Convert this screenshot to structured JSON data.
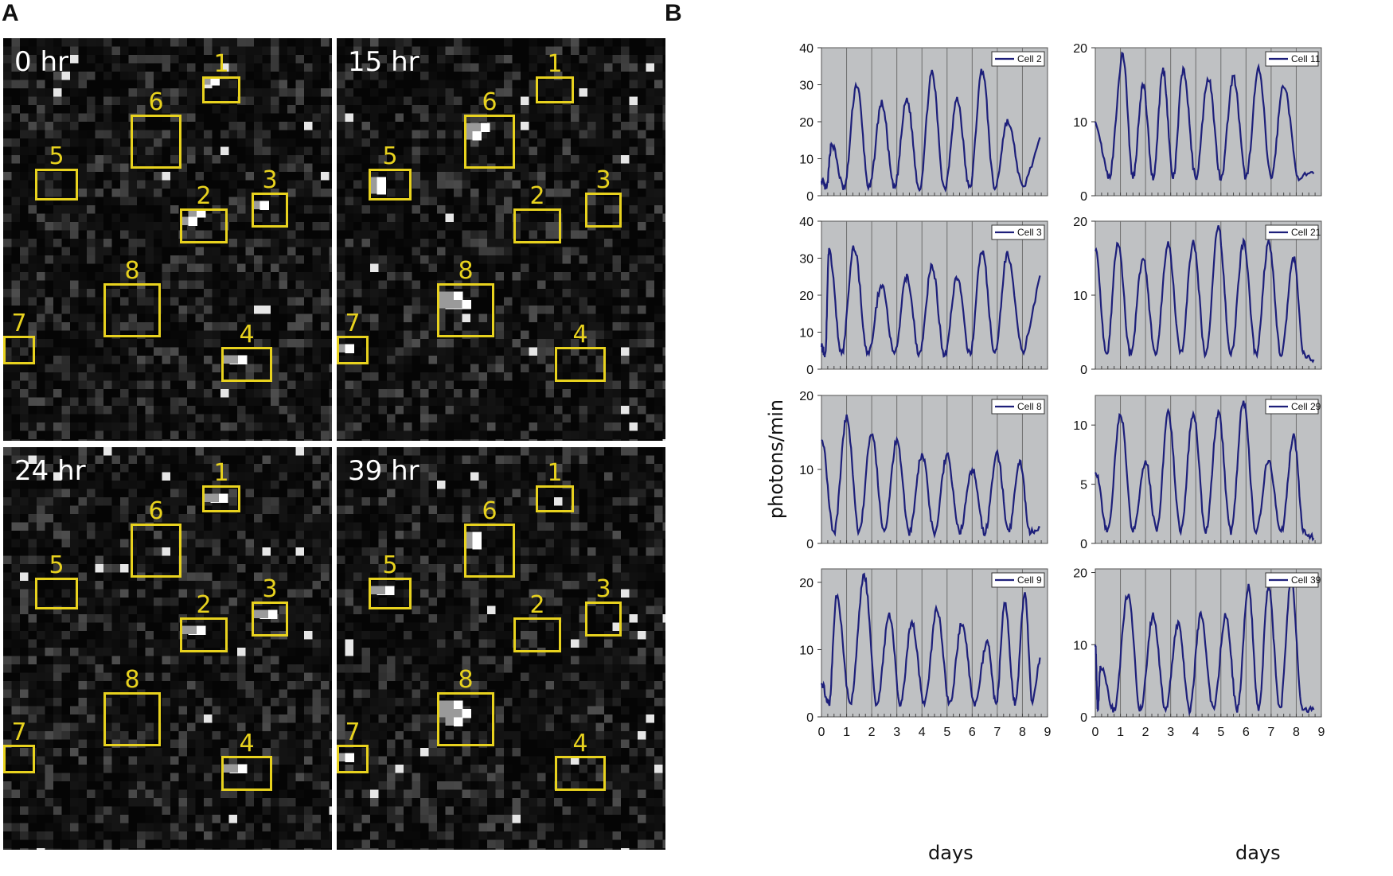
{
  "panel_a": {
    "letter": "A",
    "tiles": [
      {
        "time": "0 hr",
        "boxes": [
          {
            "label": "1",
            "bright": [
              [
                1,
                0
              ]
            ]
          },
          {
            "label": "6",
            "bright": []
          },
          {
            "label": "5",
            "bright": []
          },
          {
            "label": "2",
            "bright": [
              [
                1,
                1
              ],
              [
                2,
                0
              ]
            ]
          },
          {
            "label": "3",
            "bright": [
              [
                1,
                1
              ]
            ]
          },
          {
            "label": "8",
            "bright": []
          },
          {
            "label": "7",
            "bright": []
          },
          {
            "label": "4",
            "bright": [
              [
                1,
                1
              ],
              [
                2,
                1
              ]
            ]
          }
        ]
      },
      {
        "time": "15 hr",
        "boxes": [
          {
            "label": "1",
            "bright": []
          },
          {
            "label": "6",
            "bright": [
              [
                1,
                1
              ],
              [
                2,
                1
              ],
              [
                1,
                2
              ]
            ]
          },
          {
            "label": "5",
            "bright": [
              [
                1,
                1
              ],
              [
                1,
                2
              ]
            ]
          },
          {
            "label": "2",
            "bright": []
          },
          {
            "label": "3",
            "bright": []
          },
          {
            "label": "8",
            "bright": [
              [
                1,
                1
              ],
              [
                2,
                1
              ],
              [
                1,
                2
              ],
              [
                2,
                2
              ],
              [
                3,
                2
              ]
            ]
          },
          {
            "label": "7",
            "bright": [
              [
                1,
                1
              ]
            ]
          },
          {
            "label": "4",
            "bright": []
          }
        ]
      },
      {
        "time": "24 hr",
        "boxes": [
          {
            "label": "1",
            "bright": [
              [
                1,
                1
              ],
              [
                2,
                1
              ]
            ]
          },
          {
            "label": "6",
            "bright": []
          },
          {
            "label": "5",
            "bright": []
          },
          {
            "label": "2",
            "bright": [
              [
                1,
                1
              ],
              [
                2,
                1
              ]
            ]
          },
          {
            "label": "3",
            "bright": [
              [
                1,
                1
              ],
              [
                2,
                1
              ]
            ]
          },
          {
            "label": "8",
            "bright": []
          },
          {
            "label": "7",
            "bright": []
          },
          {
            "label": "4",
            "bright": [
              [
                1,
                1
              ],
              [
                2,
                1
              ]
            ]
          }
        ]
      },
      {
        "time": "39 hr",
        "boxes": [
          {
            "label": "1",
            "bright": []
          },
          {
            "label": "6",
            "bright": [
              [
                1,
                1
              ],
              [
                1,
                2
              ]
            ]
          },
          {
            "label": "5",
            "bright": [
              [
                1,
                1
              ],
              [
                2,
                1
              ]
            ]
          },
          {
            "label": "2",
            "bright": []
          },
          {
            "label": "3",
            "bright": []
          },
          {
            "label": "8",
            "bright": [
              [
                1,
                1
              ],
              [
                2,
                1
              ],
              [
                1,
                2
              ],
              [
                2,
                2
              ],
              [
                3,
                2
              ],
              [
                2,
                3
              ]
            ]
          },
          {
            "label": "7",
            "bright": [
              [
                1,
                1
              ]
            ]
          },
          {
            "label": "4",
            "bright": []
          }
        ]
      }
    ],
    "box_color": "#e8d21e"
  },
  "panel_b": {
    "letter": "B",
    "ylabel": "photons/min",
    "xlabel": "days"
  },
  "chart_data": [
    {
      "type": "line",
      "legend": "Cell 2",
      "ylim": [
        0,
        40
      ],
      "yticks": [
        0,
        10,
        20,
        30,
        40
      ],
      "xlim": [
        0,
        9
      ],
      "xticks": [
        0,
        1,
        2,
        3,
        4,
        5,
        6,
        7,
        8,
        9
      ],
      "series": [
        {
          "name": "Cell 2",
          "color": "#1d1f7a",
          "trough": 2,
          "peaks": [
            [
              0.4,
              14
            ],
            [
              1.4,
              30
            ],
            [
              2.4,
              25
            ],
            [
              3.4,
              26
            ],
            [
              4.4,
              33
            ],
            [
              5.4,
              26
            ],
            [
              6.4,
              34
            ],
            [
              7.4,
              20
            ]
          ],
          "end": 15
        }
      ]
    },
    {
      "type": "line",
      "legend": "Cell 11",
      "ylim": [
        0,
        20
      ],
      "yticks": [
        0,
        10,
        20
      ],
      "xlim": [
        0,
        9
      ],
      "xticks": [
        0,
        1,
        2,
        3,
        4,
        5,
        6,
        7,
        8,
        9
      ],
      "series": [
        {
          "name": "Cell 11",
          "color": "#1d1f7a",
          "trough": 2.5,
          "peaks": [
            [
              0.0,
              10
            ],
            [
              1.1,
              19
            ],
            [
              1.9,
              15
            ],
            [
              2.7,
              17
            ],
            [
              3.5,
              17
            ],
            [
              4.5,
              16
            ],
            [
              5.5,
              16
            ],
            [
              6.5,
              17
            ],
            [
              7.5,
              15
            ]
          ],
          "end": 3
        }
      ]
    },
    {
      "type": "line",
      "legend": "Cell 3",
      "ylim": [
        0,
        40
      ],
      "yticks": [
        0,
        10,
        20,
        30,
        40
      ],
      "xlim": [
        0,
        9
      ],
      "xticks": [
        0,
        1,
        2,
        3,
        4,
        5,
        6,
        7,
        8,
        9
      ],
      "series": [
        {
          "name": "Cell 3",
          "color": "#1d1f7a",
          "trough": 4,
          "peaks": [
            [
              0.3,
              32
            ],
            [
              1.3,
              33
            ],
            [
              2.4,
              23
            ],
            [
              3.4,
              25
            ],
            [
              4.4,
              28
            ],
            [
              5.4,
              25
            ],
            [
              6.4,
              32
            ],
            [
              7.4,
              31
            ]
          ],
          "end": 25
        }
      ]
    },
    {
      "type": "line",
      "legend": "Cell 21",
      "ylim": [
        0,
        20
      ],
      "yticks": [
        0,
        10,
        20
      ],
      "xlim": [
        0,
        9
      ],
      "xticks": [
        0,
        1,
        2,
        3,
        4,
        5,
        6,
        7,
        8,
        9
      ],
      "series": [
        {
          "name": "Cell 21",
          "color": "#1d1f7a",
          "trough": 2,
          "peaks": [
            [
              0.0,
              16
            ],
            [
              0.9,
              17
            ],
            [
              1.9,
              15
            ],
            [
              2.9,
              17
            ],
            [
              3.9,
              17
            ],
            [
              4.9,
              19
            ],
            [
              5.9,
              17
            ],
            [
              6.9,
              17
            ],
            [
              7.9,
              15
            ]
          ],
          "end": 1
        }
      ]
    },
    {
      "type": "line",
      "legend": "Cell 8",
      "ylim": [
        0,
        20
      ],
      "yticks": [
        0,
        10,
        20
      ],
      "xlim": [
        0,
        9
      ],
      "xticks": [
        0,
        1,
        2,
        3,
        4,
        5,
        6,
        7,
        8,
        9
      ],
      "series": [
        {
          "name": "Cell 8",
          "color": "#1d1f7a",
          "trough": 1.5,
          "peaks": [
            [
              0.0,
              14
            ],
            [
              1.0,
              17
            ],
            [
              2.0,
              15
            ],
            [
              3.0,
              14
            ],
            [
              4.0,
              12
            ],
            [
              5.0,
              12
            ],
            [
              6.0,
              10
            ],
            [
              7.0,
              12
            ],
            [
              7.9,
              11
            ]
          ],
          "end": 2
        }
      ]
    },
    {
      "type": "line",
      "legend": "Cell 29",
      "ylim": [
        0,
        12.5
      ],
      "yticks": [
        0,
        5,
        10
      ],
      "xlim": [
        0,
        9
      ],
      "xticks": [
        0,
        1,
        2,
        3,
        4,
        5,
        6,
        7,
        8,
        9
      ],
      "series": [
        {
          "name": "Cell 29",
          "color": "#1d1f7a",
          "trough": 1,
          "peaks": [
            [
              0.0,
              6
            ],
            [
              1.0,
              11
            ],
            [
              2.0,
              7
            ],
            [
              2.9,
              11
            ],
            [
              3.9,
              11
            ],
            [
              4.9,
              11
            ],
            [
              5.9,
              12
            ],
            [
              6.9,
              7
            ],
            [
              7.9,
              9
            ]
          ],
          "end": 0.5
        }
      ]
    },
    {
      "type": "line",
      "legend": "Cell 9",
      "ylim": [
        0,
        22
      ],
      "yticks": [
        0,
        10,
        20
      ],
      "xlim": [
        0,
        9
      ],
      "xticks": [
        0,
        1,
        2,
        3,
        4,
        5,
        6,
        7,
        8,
        9
      ],
      "series": [
        {
          "name": "Cell 9",
          "color": "#1d1f7a",
          "trough": 2,
          "peaks": [
            [
              0.0,
              5
            ],
            [
              0.6,
              18
            ],
            [
              1.7,
              21
            ],
            [
              2.7,
              15
            ],
            [
              3.6,
              14
            ],
            [
              4.6,
              16
            ],
            [
              5.6,
              14
            ],
            [
              6.6,
              11
            ],
            [
              7.3,
              17
            ],
            [
              8.1,
              18
            ]
          ],
          "end": 9
        }
      ]
    },
    {
      "type": "line",
      "legend": "Cell 39",
      "ylim": [
        0,
        20.5
      ],
      "yticks": [
        0,
        10,
        20
      ],
      "xlim": [
        0,
        9
      ],
      "xticks": [
        0,
        1,
        2,
        3,
        4,
        5,
        6,
        7,
        8,
        9
      ],
      "series": [
        {
          "name": "Cell 39",
          "color": "#1d1f7a",
          "trough": 1,
          "peaks": [
            [
              0.0,
              10
            ],
            [
              0.2,
              7
            ],
            [
              1.3,
              17
            ],
            [
              2.3,
              14
            ],
            [
              3.3,
              13
            ],
            [
              4.2,
              14
            ],
            [
              5.2,
              14
            ],
            [
              6.1,
              18
            ],
            [
              6.9,
              18
            ],
            [
              7.8,
              19
            ]
          ],
          "end": 1
        }
      ]
    }
  ]
}
